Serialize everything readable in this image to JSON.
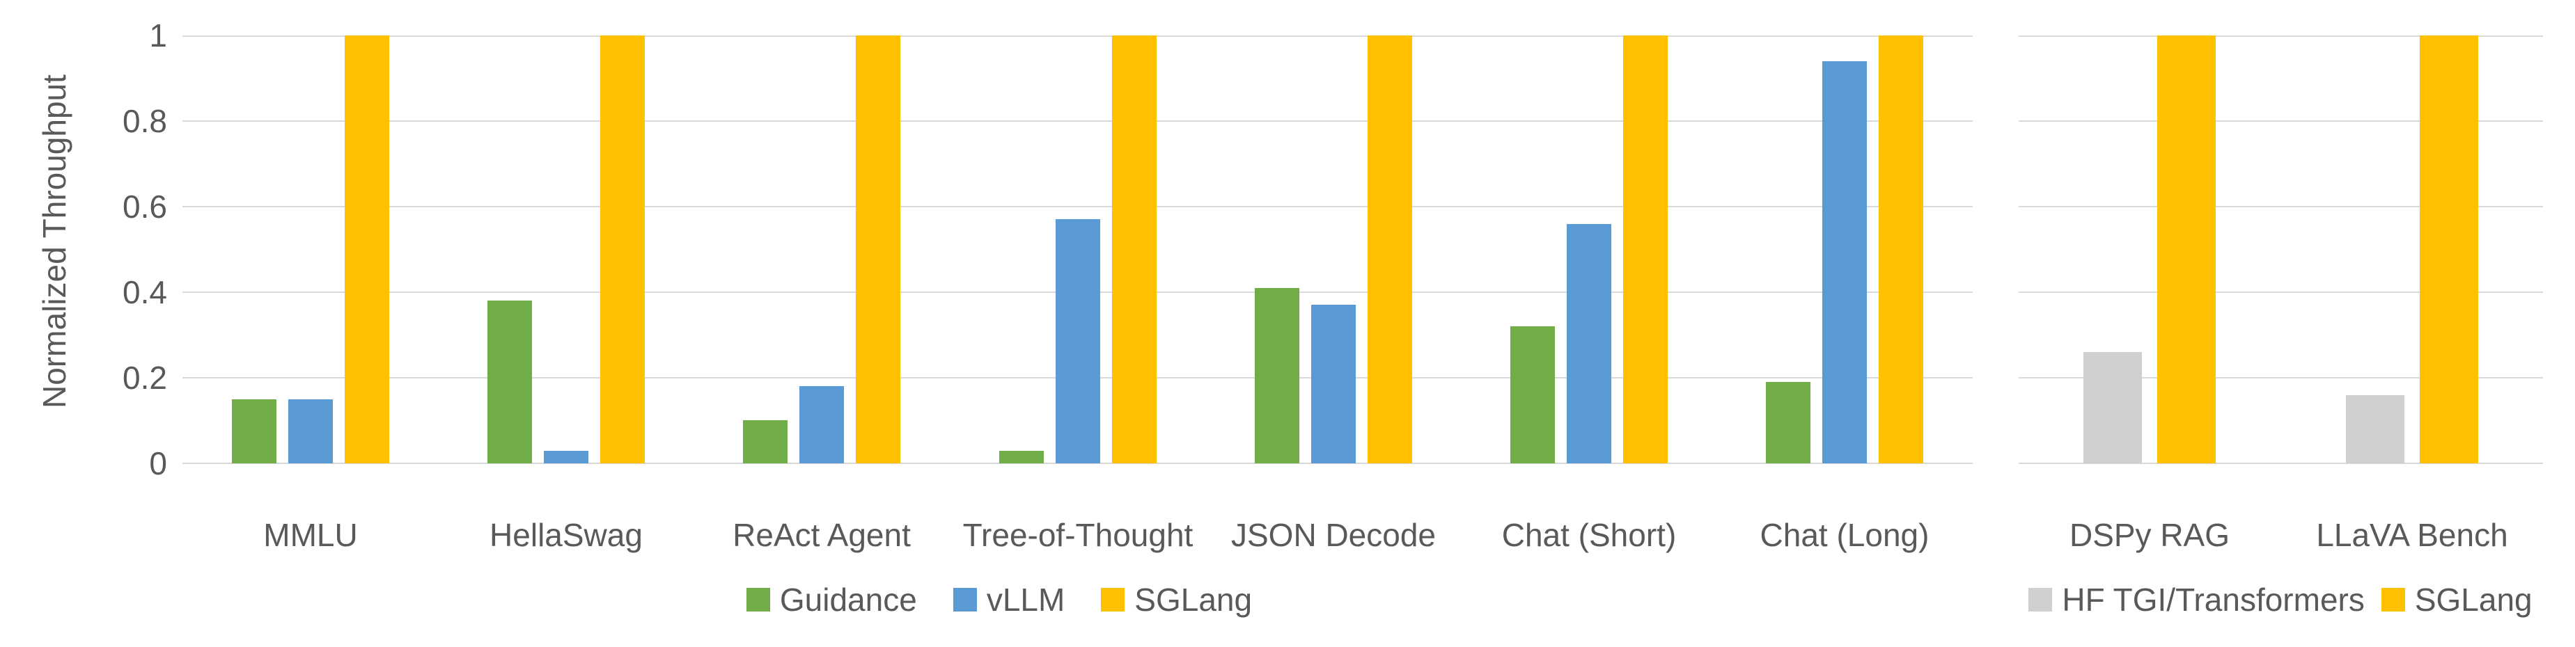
{
  "figure": {
    "background_color": "#FFFFFF",
    "text_color": "#595959",
    "gridline_color": "#D9D9D9"
  },
  "y_axis": {
    "title": "Normalized Throughput",
    "tick_labels": [
      "0",
      "0.2",
      "0.4",
      "0.6",
      "0.8",
      "1"
    ]
  },
  "chart_data": [
    {
      "type": "bar",
      "title": "",
      "ylabel": "Normalized Throughput",
      "ylim": [
        0,
        1
      ],
      "yticks": [
        "0",
        "0.2",
        "0.4",
        "0.6",
        "0.8",
        "1"
      ],
      "grid": true,
      "legend_position": "bottom",
      "categories": [
        "MMLU",
        "HellaSwag",
        "ReAct Agent",
        "Tree-of-Thought",
        "JSON Decode",
        "Chat (Short)",
        "Chat (Long)"
      ],
      "series": [
        {
          "name": "Guidance",
          "color": "#70AD47",
          "values": [
            0.15,
            0.38,
            0.1,
            0.03,
            0.41,
            0.32,
            0.19
          ]
        },
        {
          "name": "vLLM",
          "color": "#5B9BD5",
          "values": [
            0.15,
            0.03,
            0.18,
            0.57,
            0.37,
            0.56,
            0.94
          ]
        },
        {
          "name": "SGLang",
          "color": "#FFC000",
          "values": [
            1,
            1,
            1,
            1,
            1,
            1,
            1
          ]
        }
      ]
    },
    {
      "type": "bar",
      "title": "",
      "ylabel": "",
      "ylim": [
        0,
        1
      ],
      "yticks": [],
      "grid": true,
      "legend_position": "bottom",
      "categories": [
        "DSPy RAG",
        "LLaVA Bench"
      ],
      "series": [
        {
          "name": "HF TGI/Transformers",
          "color": "#D0CECE",
          "values": [
            0.26,
            0.16
          ]
        },
        {
          "name": "SGLang",
          "color": "#FFC000",
          "values": [
            1,
            1
          ]
        }
      ]
    }
  ]
}
